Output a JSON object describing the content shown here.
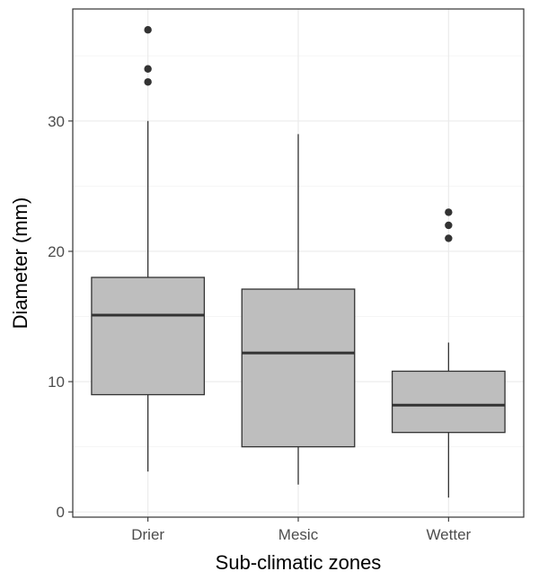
{
  "chart_data": {
    "type": "box",
    "xlabel": "Sub-climatic zones",
    "ylabel": "Diameter (mm)",
    "categories": [
      "Drier",
      "Mesic",
      "Wetter"
    ],
    "ylim": [
      -0.4,
      38.6
    ],
    "yticks": [
      0,
      10,
      20,
      30
    ],
    "grid": true,
    "boxes": [
      {
        "category": "Drier",
        "whisker_low": 3.1,
        "q1": 9.0,
        "median": 15.1,
        "q3": 18.0,
        "whisker_high": 30.0,
        "outliers": [
          33,
          34,
          37
        ]
      },
      {
        "category": "Mesic",
        "whisker_low": 2.1,
        "q1": 5.0,
        "median": 12.2,
        "q3": 17.1,
        "whisker_high": 29.0,
        "outliers": []
      },
      {
        "category": "Wetter",
        "whisker_low": 1.1,
        "q1": 6.1,
        "median": 8.2,
        "q3": 10.8,
        "whisker_high": 13.0,
        "outliers": [
          21,
          22,
          23
        ]
      }
    ],
    "colors": {
      "box_fill": "#bebebe",
      "box_stroke": "#333333",
      "grid_major": "#ebebeb",
      "grid_minor": "#f5f5f5",
      "panel_border": "#333333",
      "outlier": "#333333"
    }
  }
}
